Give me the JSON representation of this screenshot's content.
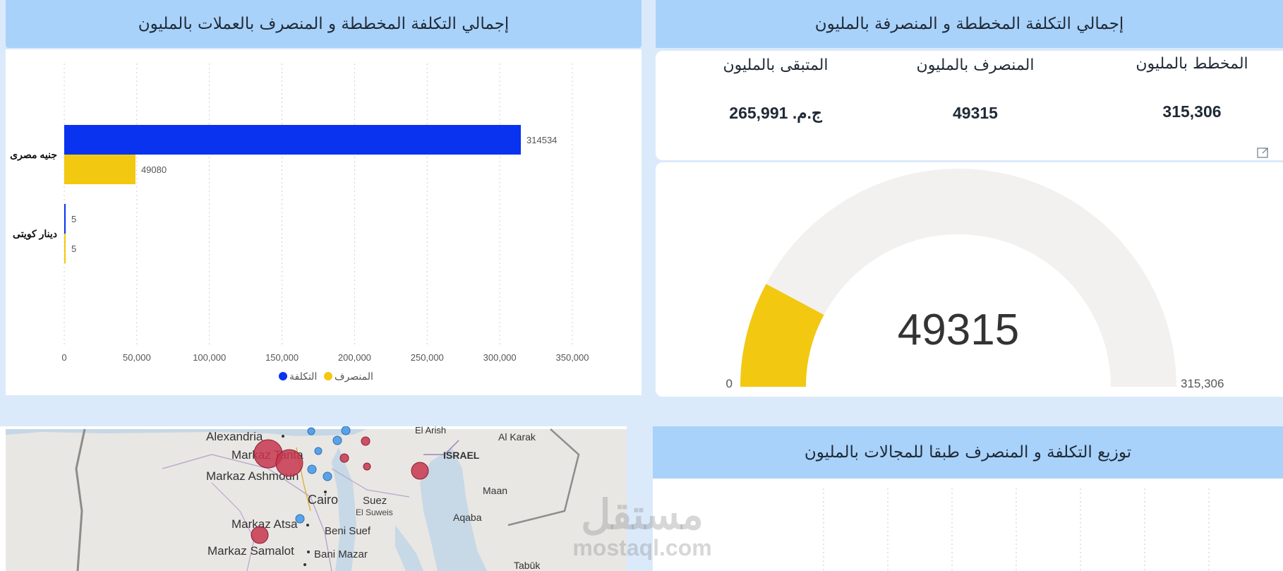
{
  "headers": {
    "currency_chart_title": "إجمالي التكلفة المخططة و المنصرف بالعملات بالمليون",
    "total_title": "إجمالي التكلفة المخططة و المنصرفة بالمليون",
    "domains_title": "توزيع التكلفة و المنصرف طبقا للمجالات بالمليون"
  },
  "kpis": [
    {
      "label": "المخطط بالمليون",
      "value": "315,306"
    },
    {
      "label": "المنصرف بالمليون",
      "value": "49315"
    },
    {
      "label": "المتبقى بالمليون",
      "value": "ج.م. 265,991"
    }
  ],
  "gauge": {
    "value": 49315,
    "value_label": "49315",
    "min_label": "0",
    "max_label": "315,306",
    "max": 315306,
    "fill_color": "#f2c811",
    "track_color": "#f2f1f0"
  },
  "chart_data": {
    "type": "bar",
    "orientation": "horizontal",
    "categories": [
      "جنيه مصرى",
      "دينار كويتى"
    ],
    "series": [
      {
        "name": "التكلفة",
        "values": [
          314534,
          5
        ],
        "color": "#0a33ef"
      },
      {
        "name": "المنصرف",
        "values": [
          49080,
          5
        ],
        "color": "#f2c811"
      }
    ],
    "data_labels": [
      [
        "314534",
        "49080"
      ],
      [
        "5",
        "5"
      ]
    ],
    "xlim": [
      0,
      350000
    ],
    "xticks": [
      "0",
      "50,000",
      "100,000",
      "150,000",
      "200,000",
      "250,000",
      "300,000",
      "350,000"
    ],
    "grid": true,
    "legend_position": "bottom"
  },
  "map": {
    "labels": [
      "Alexandria",
      "Markaz Tanta",
      "Markaz Ashmoun",
      "Cairo",
      "Suez",
      "El Suweis",
      "Markaz Atsa",
      "Beni Suef",
      "Markaz Samalot",
      "Bani Mazar",
      "ISRAEL",
      "Al Karak",
      "Maan",
      "Aqaba",
      "Tabūk",
      "El Arish"
    ],
    "bubble_colors": {
      "cost": "#c8364f",
      "spent": "#4a9be8"
    }
  },
  "watermark": {
    "arabic": "مستقل",
    "latin": "mostaql.com"
  },
  "ui": {
    "focus_icon": "focus-mode-icon"
  }
}
